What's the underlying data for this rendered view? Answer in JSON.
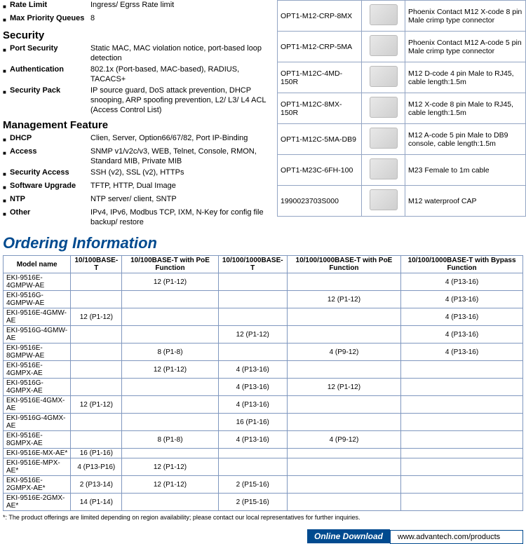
{
  "specs": {
    "lead": [
      {
        "label": "Rate Limit",
        "value": "Ingress/ Egrss Rate limit"
      },
      {
        "label": "Max Priority Queues",
        "value": "8"
      }
    ],
    "security_header": "Security",
    "security": [
      {
        "label": "Port Security",
        "value": "Static MAC, MAC violation notice, port-based loop detection"
      },
      {
        "label": "Authentication",
        "value": "802.1x (Port-based, MAC-based), RADIUS, TACACS+"
      },
      {
        "label": "Security Pack",
        "value": "IP source guard, DoS attack prevention, DHCP snooping, ARP spoofing prevention, L2/ L3/ L4 ACL (Access Control List)"
      }
    ],
    "mgmt_header": "Management Feature",
    "mgmt": [
      {
        "label": "DHCP",
        "value": "Clien, Server, Option66/67/82, Port IP-Binding"
      },
      {
        "label": "Access",
        "value": "SNMP v1/v2c/v3, WEB, Telnet, Console, RMON, Standard MIB, Private MIB"
      },
      {
        "label": "Security Access",
        "value": "SSH (v2), SSL (v2), HTTPs"
      },
      {
        "label": "Software Upgrade",
        "value": "TFTP, HTTP, Dual Image"
      },
      {
        "label": "NTP",
        "value": "NTP server/ client, SNTP"
      },
      {
        "label": "Other",
        "value": "IPv4, IPv6, Modbus TCP, IXM, N-Key for config file backup/ restore"
      }
    ]
  },
  "parts": [
    {
      "pn": "OPT1-M12-CRP-8MX",
      "desc": "Phoenix Contact M12 X-code 8 pin Male crimp type connector"
    },
    {
      "pn": "OPT1-M12-CRP-5MA",
      "desc": "Phoenix Contact M12 A-code 5 pin Male crimp type connector"
    },
    {
      "pn": "OPT1-M12C-4MD-150R",
      "desc": "M12 D-code 4 pin Male to RJ45, cable length:1.5m"
    },
    {
      "pn": "OPT1-M12C-8MX-150R",
      "desc": "M12 X-code 8 pin Male to RJ45, cable length:1.5m"
    },
    {
      "pn": "OPT1-M12C-5MA-DB9",
      "desc": "M12 A-code 5 pin Male to DB9 console, cable length:1.5m"
    },
    {
      "pn": "OPT1-M23C-6FH-100",
      "desc": "M23 Female to 1m cable"
    },
    {
      "pn": "1990023703S000",
      "desc": "M12 waterproof CAP"
    }
  ],
  "ordering_header": "Ordering Information",
  "order_cols": [
    "Model name",
    "10/100BASE-T",
    "10/100BASE-T with PoE Function",
    "10/100/1000BASE-T",
    "10/100/1000BASE-T with PoE Function",
    "10/100/1000BASE-T with Bypass Function"
  ],
  "order_rows": [
    [
      "EKI-9516E-4GMPW-AE",
      "",
      "12 (P1-12)",
      "",
      "",
      "4 (P13-16)"
    ],
    [
      "EKI-9516G-4GMPW-AE",
      "",
      "",
      "",
      "12 (P1-12)",
      "4 (P13-16)"
    ],
    [
      "EKI-9516E-4GMW-AE",
      "12 (P1-12)",
      "",
      "",
      "",
      "4 (P13-16)"
    ],
    [
      "EKI-9516G-4GMW-AE",
      "",
      "",
      "12 (P1-12)",
      "",
      "4 (P13-16)"
    ],
    [
      "EKI-9516E-8GMPW-AE",
      "",
      "8 (P1-8)",
      "",
      "4 (P9-12)",
      "4 (P13-16)"
    ],
    [
      "EKI-9516E-4GMPX-AE",
      "",
      "12 (P1-12)",
      "4 (P13-16)",
      "",
      ""
    ],
    [
      "EKI-9516G-4GMPX-AE",
      "",
      "",
      "4 (P13-16)",
      "12 (P1-12)",
      ""
    ],
    [
      "EKI-9516E-4GMX-AE",
      "12 (P1-12)",
      "",
      "4 (P13-16)",
      "",
      ""
    ],
    [
      "EKI-9516G-4GMX-AE",
      "",
      "",
      "16 (P1-16)",
      "",
      ""
    ],
    [
      "EKI-9516E-8GMPX-AE",
      "",
      "8 (P1-8)",
      "4 (P13-16)",
      "4 (P9-12)",
      ""
    ],
    [
      "EKI-9516E-MX-AE*",
      "16 (P1-16)",
      "",
      "",
      "",
      ""
    ],
    [
      "EKI-9516E-MPX-AE*",
      "4 (P13-P16)",
      "12 (P1-12)",
      "",
      "",
      ""
    ],
    [
      "EKI-9516E-2GMPX-AE*",
      "2 (P13-14)",
      "12 (P1-12)",
      "2 (P15-16)",
      "",
      ""
    ],
    [
      "EKI-9516E-2GMX-AE*",
      "14 (P1-14)",
      "",
      "2 (P15-16)",
      "",
      ""
    ]
  ],
  "footnote": "*: The product offerings are limited depending on region availability; please contact our local representatives for further inquiries.",
  "download_label": "Online Download",
  "download_url": "www.advantech.com/products"
}
